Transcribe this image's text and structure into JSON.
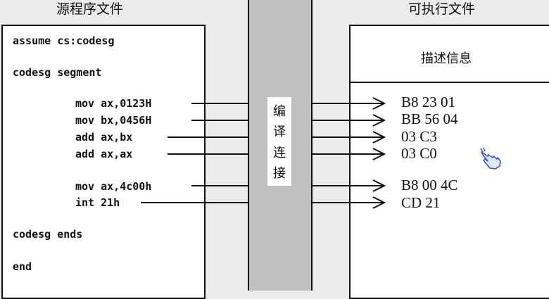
{
  "titles": {
    "source_file": "源程序文件",
    "executable_file": "可执行文件"
  },
  "source_code": {
    "line1": "assume cs:codesg",
    "line2": "codesg segment",
    "instructions": [
      "mov ax,0123H",
      "mov bx,0456H",
      "add ax,bx",
      "add ax,ax",
      "mov ax,4c00h",
      "int 21h"
    ],
    "line_end_segment": "codesg ends",
    "line_end": "end"
  },
  "center": {
    "chars": [
      "编",
      "译",
      "连",
      "接"
    ]
  },
  "executable": {
    "header": "描述信息",
    "machine_code": [
      "B8 23 01",
      "BB 56 04",
      "03 C3",
      "03 C0",
      "B8 00 4C",
      "CD 21"
    ]
  },
  "colors": {
    "line": "#111111",
    "bar": "#c0c0c0",
    "cursor": "#3355cc"
  },
  "icons": {
    "cursor": "hand-pointer-icon"
  }
}
